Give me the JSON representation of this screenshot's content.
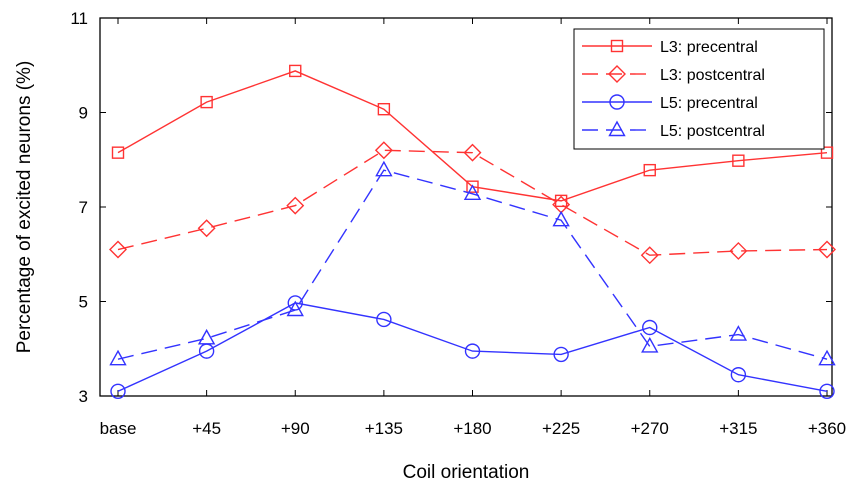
{
  "chart_data": {
    "type": "line",
    "title": "",
    "xlabel": "Coil orientation",
    "ylabel": "Percentage of  excited neurons (%)",
    "categories": [
      "base",
      "+45",
      "+90",
      "+135",
      "+180",
      "+225",
      "+270",
      "+315",
      "+360"
    ],
    "ylim": [
      3,
      11
    ],
    "yticks": [
      3,
      5,
      7,
      9,
      11
    ],
    "grid": false,
    "legend_position": "top-right",
    "series": [
      {
        "name": "L3: precentral",
        "color": "#ff3333",
        "dash": "solid",
        "marker": "square",
        "values": [
          8.15,
          9.22,
          9.88,
          9.07,
          7.43,
          7.13,
          7.78,
          7.98,
          8.15
        ]
      },
      {
        "name": "L3: postcentral",
        "color": "#ff3333",
        "dash": "dashed",
        "marker": "diamond",
        "values": [
          6.1,
          6.55,
          7.03,
          8.2,
          8.15,
          7.05,
          5.98,
          6.07,
          6.1
        ]
      },
      {
        "name": "L5: precentral",
        "color": "#3333ff",
        "dash": "solid",
        "marker": "circle",
        "values": [
          3.1,
          3.95,
          4.97,
          4.62,
          3.95,
          3.88,
          4.45,
          3.45,
          3.1
        ]
      },
      {
        "name": "L5: postcentral",
        "color": "#3333ff",
        "dash": "dashed",
        "marker": "triangle",
        "values": [
          3.78,
          4.22,
          4.82,
          7.78,
          7.28,
          6.72,
          4.05,
          4.3,
          3.78
        ]
      }
    ]
  }
}
